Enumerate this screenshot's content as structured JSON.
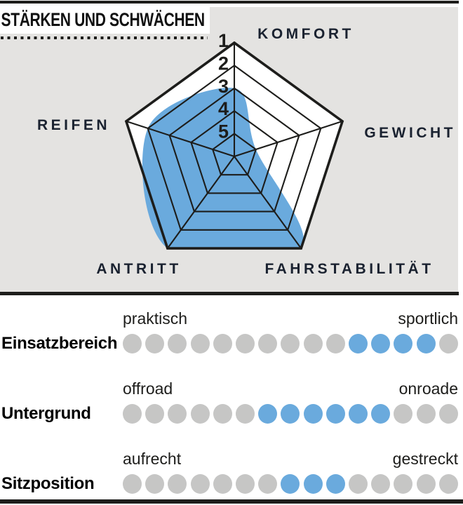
{
  "title": "STÄRKEN UND SCHWÄCHEN",
  "colors": {
    "accent_blue": "#6aaadd",
    "inactive_gray": "#c6c6c5",
    "panel_gray": "#e4e3e1",
    "line_black": "#1d1d1b",
    "label_dark": "#1a2230"
  },
  "chart_data": [
    {
      "type": "radar",
      "title": "STÄRKEN UND SCHWÄCHEN",
      "axes": [
        "KOMFORT",
        "GEWICHT",
        "FAHRSTABILITÄT",
        "ANTRITT",
        "REIFEN"
      ],
      "values": [
        3,
        5,
        1,
        1,
        2
      ],
      "scale": {
        "ticks": [
          1,
          2,
          3,
          4,
          5
        ],
        "note": "1 = outer edge (best), 5 = innermost ring"
      },
      "rings": 5,
      "fill_color": "#6aaadd",
      "grid_color": "#1d1d1b",
      "background": "#e4e3e1",
      "legend_position": "none",
      "grid": true
    },
    {
      "type": "dot-scale",
      "rows": [
        {
          "label": "Einsatzbereich",
          "left": "praktisch",
          "right": "sportlich",
          "total_dots": 15,
          "active_dots": [
            11,
            12,
            13,
            14
          ]
        },
        {
          "label": "Untergrund",
          "left": "offroad",
          "right": "onroade",
          "total_dots": 15,
          "active_dots": [
            7,
            8,
            9,
            10,
            11,
            12
          ]
        },
        {
          "label": "Sitzposition",
          "left": "aufrecht",
          "right": "gestreckt",
          "total_dots": 15,
          "active_dots": [
            8,
            9,
            10
          ]
        }
      ],
      "active_color": "#6aaadd",
      "inactive_color": "#c6c6c5"
    }
  ]
}
